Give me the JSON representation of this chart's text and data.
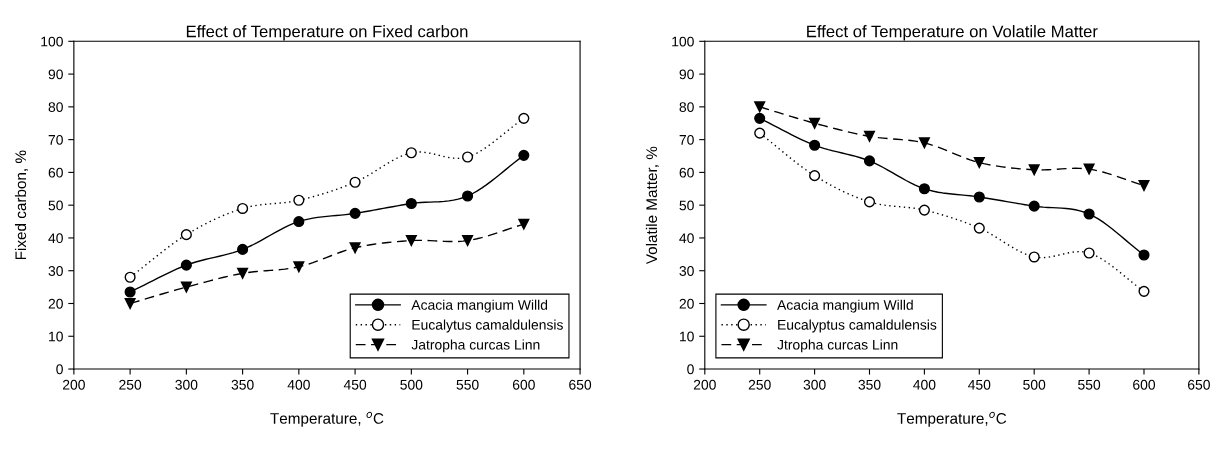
{
  "chart_data": [
    {
      "type": "line",
      "title": "Effect of Temperature on Fixed carbon",
      "xlabel": "Temperature, $^{o}$C",
      "ylabel": "Fixed carbon, %",
      "x": [
        250,
        300,
        350,
        400,
        450,
        500,
        550,
        600
      ],
      "xlim": [
        200,
        650
      ],
      "xticks": [
        200,
        250,
        300,
        350,
        400,
        450,
        500,
        550,
        600,
        650
      ],
      "ylim": [
        0,
        100
      ],
      "yticks": [
        0,
        10,
        20,
        30,
        40,
        50,
        60,
        70,
        80,
        90,
        100
      ],
      "grid": false,
      "legend": "bottom right",
      "series": [
        {
          "name": "Acacia mangium Willd",
          "color": "#000000",
          "marker": "circle",
          "line_style": "solid",
          "values": [
            23.5,
            31.7,
            36.5,
            45,
            47.5,
            50.5,
            52.8,
            65.2
          ]
        },
        {
          "name": "Eucalytus camaldulensis",
          "color": "#000000",
          "marker": "circle",
          "line_style": "dotted",
          "values": [
            28,
            41,
            49,
            51.5,
            57,
            66,
            64.7,
            76.5
          ]
        },
        {
          "name": "Jatropha curcas Linn",
          "color": "#000000",
          "marker": "triangle",
          "line_style": "dashed",
          "values": [
            20,
            25,
            29.2,
            31.2,
            37,
            39.2,
            39.2,
            44.2
          ]
        }
      ]
    },
    {
      "type": "line",
      "title": "Effect of Temperature on Volatile Matter",
      "xlabel": "Temperature,$^{o}$C",
      "ylabel": "Volatile Matter, %",
      "x": [
        250,
        300,
        350,
        400,
        450,
        500,
        550,
        600
      ],
      "xlim": [
        200,
        650
      ],
      "xticks": [
        200,
        250,
        300,
        350,
        400,
        450,
        500,
        550,
        600,
        650
      ],
      "ylim": [
        0,
        100
      ],
      "yticks": [
        0,
        10,
        20,
        30,
        40,
        50,
        60,
        70,
        80,
        90,
        100
      ],
      "grid": false,
      "legend": "bottom left",
      "series": [
        {
          "name": "Acacia mangium Willd",
          "color": "#000000",
          "marker": "circle",
          "line_style": "solid",
          "values": [
            76.5,
            68.3,
            63.5,
            55,
            52.5,
            49.7,
            47.3,
            34.8
          ]
        },
        {
          "name": "Eucalyptus camaldulensis",
          "color": "#000000",
          "marker": "circle",
          "line_style": "dotted",
          "values": [
            72,
            59,
            51,
            48.5,
            43,
            34.2,
            35.4,
            23.7
          ]
        },
        {
          "name": "Jtropha curcas Linn",
          "color": "#000000",
          "marker": "triangle",
          "line_style": "dashed",
          "values": [
            80,
            75,
            71,
            69,
            63,
            60.8,
            61,
            56
          ]
        }
      ]
    }
  ]
}
